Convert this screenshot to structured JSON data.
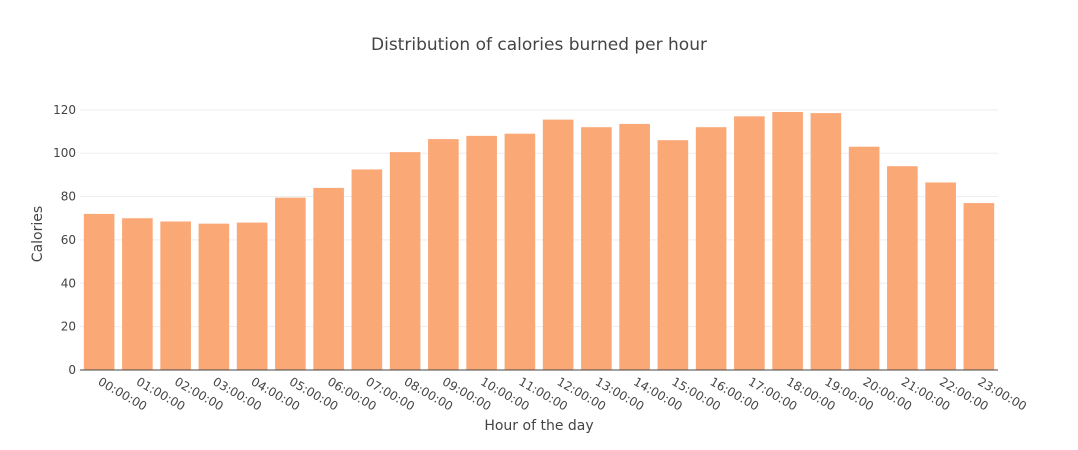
{
  "chart_data": {
    "type": "bar",
    "title": "Distribution of calories burned per hour",
    "xlabel": "Hour of the day",
    "ylabel": "Calories",
    "categories": [
      "00:00:00",
      "01:00:00",
      "02:00:00",
      "03:00:00",
      "04:00:00",
      "05:00:00",
      "06:00:00",
      "07:00:00",
      "08:00:00",
      "09:00:00",
      "10:00:00",
      "11:00:00",
      "12:00:00",
      "13:00:00",
      "14:00:00",
      "15:00:00",
      "16:00:00",
      "17:00:00",
      "18:00:00",
      "19:00:00",
      "20:00:00",
      "21:00:00",
      "22:00:00",
      "23:00:00"
    ],
    "values": [
      72,
      70,
      68.5,
      67.5,
      68,
      79.5,
      84,
      92.5,
      100.5,
      106.5,
      108,
      109,
      115.5,
      112,
      113.5,
      106,
      112,
      117,
      119,
      118.5,
      103,
      94,
      86.5,
      77
    ],
    "ylim": [
      0,
      125
    ],
    "yticks": [
      0,
      20,
      40,
      60,
      80,
      100,
      120
    ],
    "bar_color": "#fba877",
    "grid": true,
    "legend": "none"
  }
}
